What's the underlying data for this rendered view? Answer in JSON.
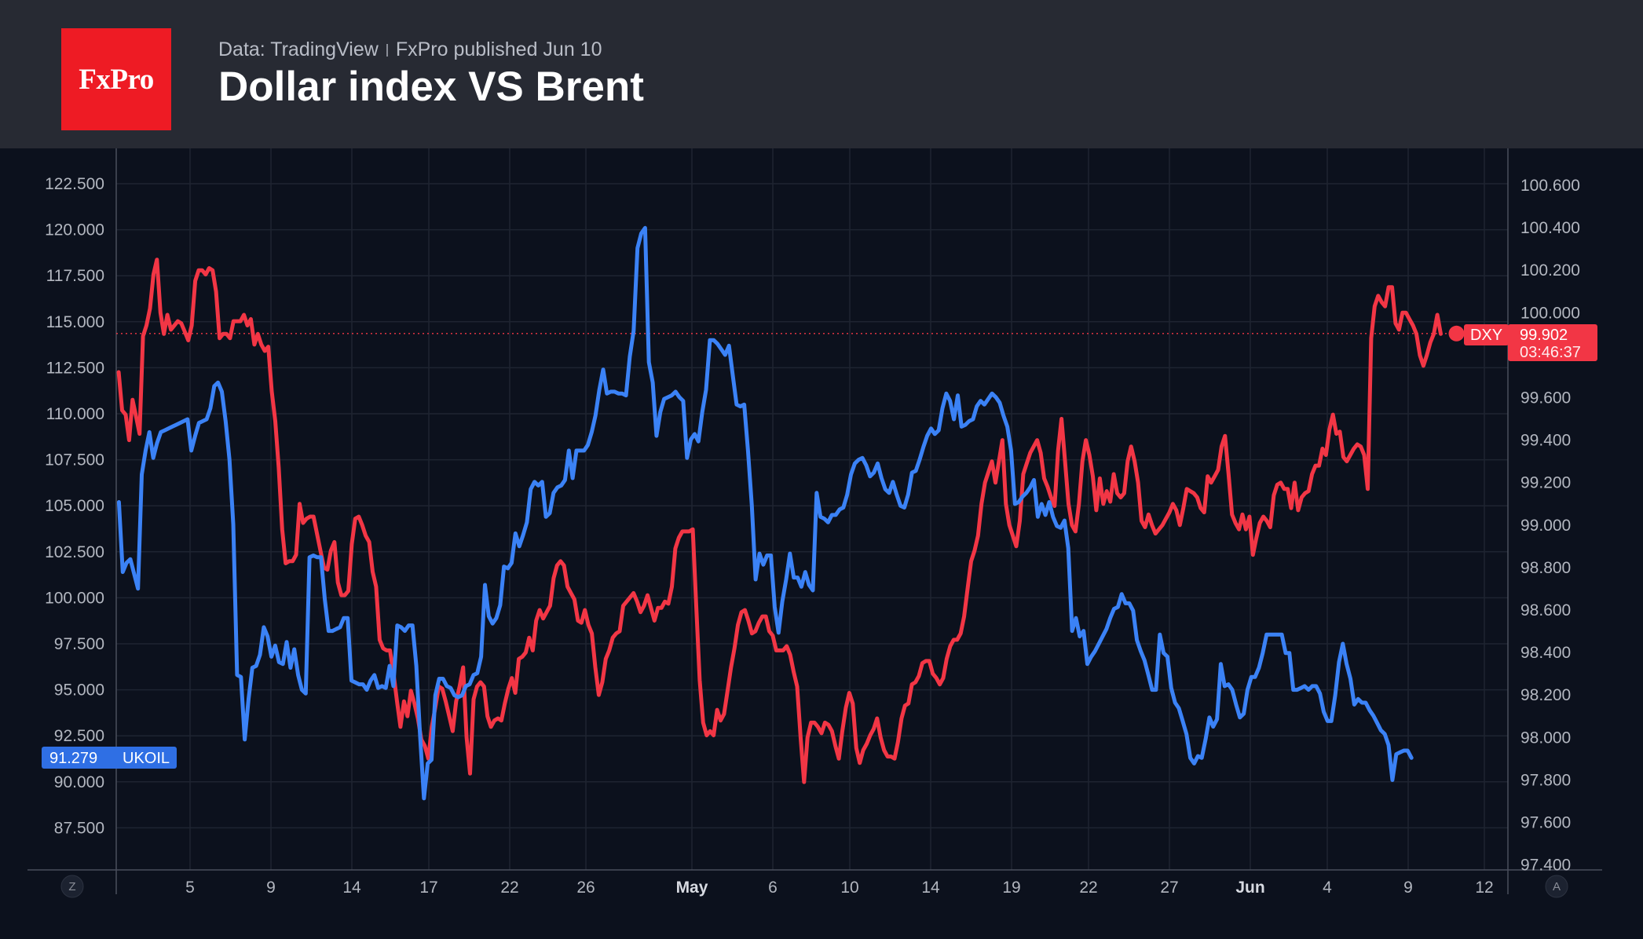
{
  "header": {
    "logo_text": "FxPro",
    "source": "Data: TradingView",
    "published": "FxPro published Jun 10",
    "title": "Dollar index VS Brent"
  },
  "chart_data": {
    "type": "line",
    "title": "Dollar index VS Brent",
    "grid": true,
    "x_ticks": [
      {
        "label": "5",
        "bold": false
      },
      {
        "label": "9",
        "bold": false
      },
      {
        "label": "14",
        "bold": false
      },
      {
        "label": "17",
        "bold": false
      },
      {
        "label": "22",
        "bold": false
      },
      {
        "label": "26",
        "bold": false
      },
      {
        "label": "May",
        "bold": true
      },
      {
        "label": "6",
        "bold": false
      },
      {
        "label": "10",
        "bold": false
      },
      {
        "label": "14",
        "bold": false
      },
      {
        "label": "19",
        "bold": false
      },
      {
        "label": "22",
        "bold": false
      },
      {
        "label": "27",
        "bold": false
      },
      {
        "label": "Jun",
        "bold": true
      },
      {
        "label": "4",
        "bold": false
      },
      {
        "label": "9",
        "bold": false
      },
      {
        "label": "12",
        "bold": false
      }
    ],
    "left_axis": {
      "ticks": [
        "122.500",
        "120.000",
        "117.500",
        "115.000",
        "112.500",
        "110.000",
        "107.500",
        "105.000",
        "102.500",
        "100.000",
        "97.500",
        "95.000",
        "92.500",
        "90.000",
        "87.500"
      ],
      "range": [
        85.0,
        124.0
      ]
    },
    "right_axis": {
      "ticks": [
        "100.600",
        "100.400",
        "100.200",
        "100.000",
        "99.600",
        "99.400",
        "99.200",
        "99.000",
        "98.800",
        "98.600",
        "98.400",
        "98.200",
        "98.000",
        "97.800",
        "97.600",
        "97.400"
      ],
      "range": [
        97.4,
        100.75
      ]
    },
    "series": [
      {
        "name": "UKOIL",
        "axis": "left",
        "color": "#3b82f6",
        "last_label": "91.279",
        "values": [
          105.2,
          101.4,
          101.9,
          102.1,
          101.3,
          100.5,
          106.7,
          108.0,
          109.0,
          107.6,
          108.4,
          109.0,
          109.1,
          109.2,
          109.3,
          109.4,
          109.5,
          109.6,
          109.7,
          108.0,
          108.8,
          109.5,
          109.6,
          109.7,
          110.3,
          111.5,
          111.7,
          111.2,
          109.6,
          107.5,
          104.0,
          95.8,
          95.7,
          92.3,
          94.5,
          96.2,
          96.3,
          96.9,
          98.4,
          97.9,
          96.8,
          97.4,
          96.5,
          96.4,
          97.6,
          96.2,
          97.2,
          95.8,
          95.0,
          94.8,
          102.2,
          102.3,
          102.2,
          102.2,
          99.9,
          98.2,
          98.2,
          98.3,
          98.4,
          98.9,
          98.9,
          95.5,
          95.4,
          95.3,
          95.3,
          95.0,
          95.5,
          95.8,
          95.1,
          95.2,
          95.1,
          96.3,
          95.2,
          98.5,
          98.4,
          98.2,
          98.5,
          98.5,
          96.3,
          92.5,
          89.1,
          91.0,
          91.2,
          94.7,
          95.6,
          95.6,
          95.2,
          95.1,
          94.7,
          94.6,
          94.7,
          95.2,
          95.3,
          95.8,
          95.9,
          96.8,
          100.7,
          99.0,
          98.6,
          98.9,
          99.6,
          101.7,
          101.6,
          101.9,
          103.5,
          102.8,
          103.4,
          104.1,
          105.9,
          106.3,
          106.1,
          106.3,
          104.4,
          104.6,
          105.7,
          106.0,
          106.1,
          106.4,
          108.0,
          106.5,
          108.0,
          108.0,
          108.0,
          108.3,
          109.0,
          109.9,
          111.3,
          112.4,
          111.1,
          111.2,
          111.2,
          111.1,
          111.1,
          111.0,
          113.1,
          114.5,
          119.0,
          119.8,
          120.1,
          112.8,
          111.7,
          108.8,
          110.1,
          110.8,
          110.9,
          111.0,
          111.2,
          110.9,
          110.7,
          107.6,
          108.6,
          108.9,
          108.5,
          110.1,
          111.3,
          114.0,
          114.0,
          113.8,
          113.5,
          113.2,
          113.7,
          112.1,
          110.5,
          110.4,
          110.5,
          108.0,
          105.0,
          101.0,
          102.4,
          101.8,
          102.3,
          102.3,
          99.5,
          98.1,
          99.8,
          101.0,
          102.4,
          101.1,
          101.1,
          100.6,
          101.4,
          100.7,
          100.4,
          105.7,
          104.4,
          104.3,
          104.1,
          104.5,
          104.5,
          104.8,
          104.9,
          105.6,
          106.7,
          107.3,
          107.5,
          107.6,
          107.2,
          106.6,
          106.8,
          107.3,
          106.5,
          105.9,
          105.7,
          106.3,
          105.6,
          105.0,
          104.9,
          105.6,
          106.8,
          106.9,
          107.5,
          108.2,
          108.8,
          109.2,
          108.9,
          109.1,
          110.3,
          111.1,
          110.7,
          109.7,
          111.0,
          109.3,
          109.4,
          109.6,
          109.7,
          110.4,
          110.7,
          110.5,
          110.8,
          111.1,
          110.9,
          110.6,
          109.9,
          109.3,
          108.0,
          105.1,
          105.2,
          105.5,
          105.7,
          106.0,
          106.4,
          104.4,
          105.1,
          104.5,
          105.2,
          104.4,
          103.9,
          103.8,
          104.2,
          102.7,
          98.2,
          98.9,
          97.9,
          98.2,
          96.4,
          96.8,
          97.1,
          97.5,
          97.9,
          98.3,
          98.9,
          99.4,
          99.5,
          100.2,
          99.7,
          99.7,
          99.3,
          97.7,
          97.1,
          96.6,
          95.8,
          95.0,
          95.0,
          98.0,
          97.0,
          96.8,
          95.1,
          94.3,
          94.0,
          93.3,
          92.6,
          91.3,
          91.0,
          91.4,
          91.3,
          92.3,
          93.5,
          93.0,
          93.4,
          96.4,
          95.2,
          95.3,
          95.0,
          94.2,
          93.5,
          93.7,
          95.0,
          95.7,
          95.7,
          96.2,
          97.0,
          98.0,
          98.0,
          98.0,
          98.0,
          98.0,
          97.0,
          97.0,
          95.0,
          95.0,
          95.1,
          95.2,
          95.0,
          95.2,
          95.2,
          94.8,
          93.8,
          93.3,
          93.3,
          94.7,
          96.5,
          97.5,
          96.4,
          95.6,
          94.2,
          94.5,
          94.3,
          94.3,
          93.9,
          93.6,
          93.2,
          92.8,
          92.6,
          92.0,
          90.1,
          91.5,
          91.6,
          91.7,
          91.7,
          91.3
        ],
        "x_range": [
          -0.7,
          364.3
        ]
      },
      {
        "name": "DXY",
        "axis": "right",
        "color": "#f23645",
        "last_label": "99.902",
        "countdown": "03:46:37",
        "values": [
          99.72,
          99.54,
          99.52,
          99.4,
          99.59,
          99.51,
          99.43,
          99.89,
          99.94,
          100.02,
          100.18,
          100.25,
          100.0,
          99.9,
          99.99,
          99.92,
          99.94,
          99.96,
          99.95,
          99.91,
          99.87,
          99.94,
          100.15,
          100.2,
          100.2,
          100.18,
          100.21,
          100.2,
          100.1,
          99.88,
          99.9,
          99.9,
          99.88,
          99.96,
          99.96,
          99.96,
          99.99,
          99.94,
          99.97,
          99.85,
          99.9,
          99.85,
          99.82,
          99.84,
          99.63,
          99.49,
          99.27,
          98.98,
          98.82,
          98.83,
          98.83,
          98.86,
          99.1,
          99.01,
          99.03,
          99.04,
          99.04,
          98.96,
          98.88,
          98.8,
          98.79,
          98.88,
          98.92,
          98.73,
          98.67,
          98.67,
          98.69,
          98.91,
          99.03,
          99.04,
          99.0,
          98.95,
          98.92,
          98.78,
          98.71,
          98.46,
          98.42,
          98.41,
          98.41,
          98.3,
          98.17,
          98.05,
          98.17,
          98.1,
          98.22,
          98.16,
          98.09,
          97.99,
          97.96,
          97.9,
          98.05,
          98.14,
          98.24,
          98.23,
          98.17,
          98.1,
          98.03,
          98.17,
          98.24,
          98.33,
          98.0,
          97.83,
          98.18,
          98.24,
          98.26,
          98.24,
          98.1,
          98.05,
          98.08,
          98.09,
          98.08,
          98.16,
          98.23,
          98.28,
          98.21,
          98.37,
          98.38,
          98.4,
          98.47,
          98.41,
          98.55,
          98.6,
          98.56,
          98.59,
          98.62,
          98.75,
          98.81,
          98.83,
          98.81,
          98.71,
          98.68,
          98.65,
          98.55,
          98.54,
          98.6,
          98.53,
          98.49,
          98.33,
          98.2,
          98.26,
          98.37,
          98.41,
          98.47,
          98.49,
          98.5,
          98.62,
          98.64,
          98.66,
          98.68,
          98.64,
          98.59,
          98.62,
          98.67,
          98.61,
          98.55,
          98.61,
          98.61,
          98.64,
          98.63,
          98.71,
          98.89,
          98.94,
          98.97,
          98.97,
          98.97,
          98.98,
          98.62,
          98.27,
          98.07,
          98.01,
          98.03,
          98.01,
          98.13,
          98.08,
          98.11,
          98.22,
          98.33,
          98.42,
          98.53,
          98.59,
          98.6,
          98.55,
          98.49,
          98.5,
          98.54,
          98.57,
          98.57,
          98.5,
          98.48,
          98.41,
          98.41,
          98.41,
          98.43,
          98.39,
          98.31,
          98.24,
          98.0,
          97.79,
          98.0,
          98.07,
          98.07,
          98.05,
          98.02,
          98.07,
          98.06,
          98.03,
          97.96,
          97.9,
          98.03,
          98.14,
          98.21,
          98.16,
          97.95,
          97.88,
          97.94,
          97.97,
          98.01,
          98.04,
          98.09,
          98.0,
          97.94,
          97.91,
          97.91,
          97.9,
          97.98,
          98.09,
          98.15,
          98.16,
          98.25,
          98.26,
          98.29,
          98.35,
          98.36,
          98.36,
          98.3,
          98.28,
          98.25,
          98.28,
          98.37,
          98.43,
          98.46,
          98.46,
          98.49,
          98.57,
          98.7,
          98.83,
          98.88,
          98.95,
          99.1,
          99.2,
          99.25,
          99.3,
          99.2,
          99.3,
          99.4,
          99.1,
          99.0,
          98.95,
          98.9,
          99.02,
          99.24,
          99.29,
          99.34,
          99.37,
          99.4,
          99.34,
          99.22,
          99.18,
          99.13,
          99.09,
          99.35,
          99.5,
          99.3,
          99.1,
          99.0,
          98.97,
          99.1,
          99.3,
          99.4,
          99.33,
          99.23,
          99.07,
          99.22,
          99.1,
          99.16,
          99.11,
          99.24,
          99.15,
          99.13,
          99.15,
          99.3,
          99.37,
          99.3,
          99.2,
          99.02,
          98.99,
          99.05,
          99.0,
          98.96,
          98.98,
          99.0,
          99.03,
          99.06,
          99.1,
          99.07,
          99.0,
          99.08,
          99.17,
          99.16,
          99.15,
          99.13,
          99.08,
          99.06,
          99.23,
          99.2,
          99.23,
          99.26,
          99.37,
          99.42,
          99.24,
          99.05,
          99.01,
          98.98,
          99.05,
          98.98,
          99.04,
          98.86,
          98.94,
          99.01,
          99.04,
          99.02,
          98.99,
          99.14,
          99.19,
          99.2,
          99.17,
          99.17,
          99.08,
          99.2,
          99.07,
          99.13,
          99.15,
          99.16,
          99.24,
          99.28,
          99.28,
          99.36,
          99.33,
          99.45,
          99.52,
          99.43,
          99.44,
          99.32,
          99.3,
          99.33,
          99.36,
          99.38,
          99.37,
          99.33,
          99.17,
          99.88,
          100.03,
          100.08,
          100.05,
          100.03,
          100.12,
          100.12,
          99.95,
          99.92,
          100.0,
          100.0,
          99.97,
          99.94,
          99.9,
          99.8,
          99.75,
          99.8,
          99.86,
          99.9,
          99.99,
          99.9
        ],
        "x_range": [
          -0.7,
          399.3
        ]
      }
    ]
  },
  "controls": {
    "left_button": "Z",
    "right_button": "A"
  }
}
